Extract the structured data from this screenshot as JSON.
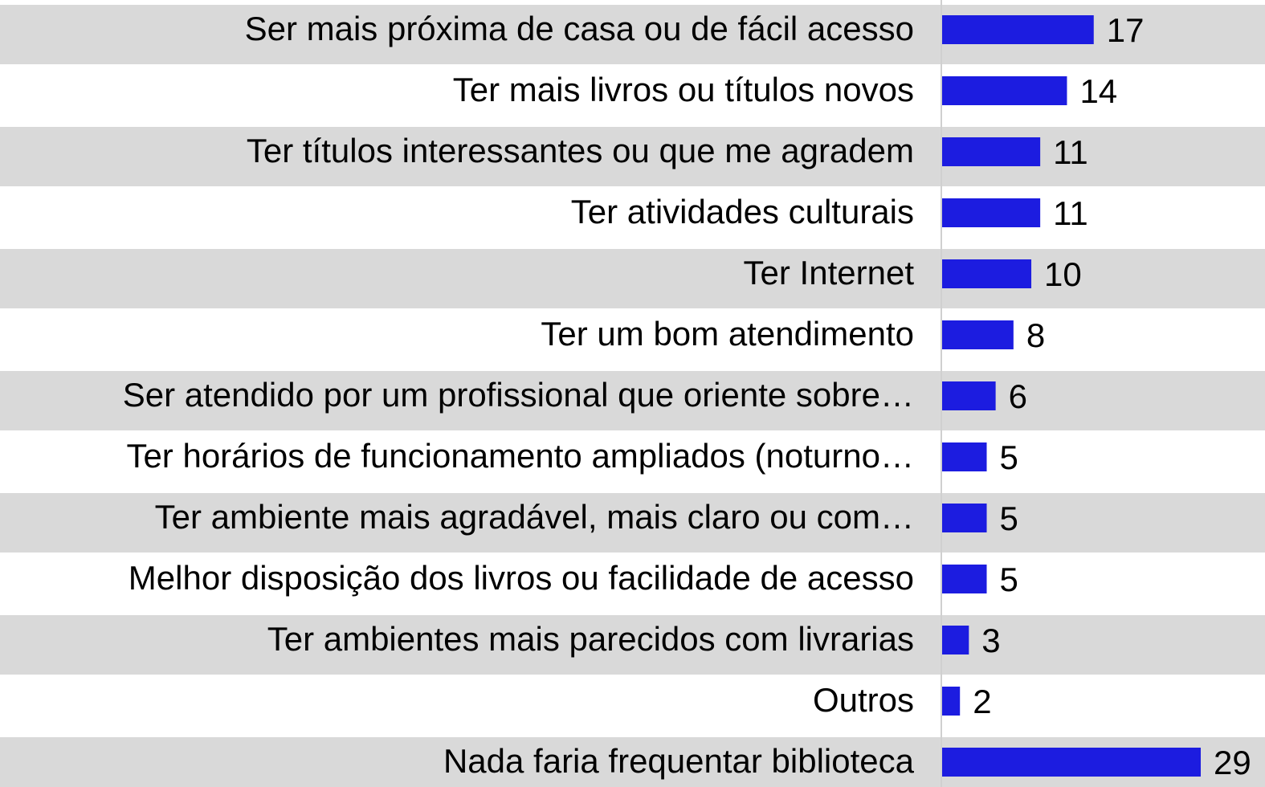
{
  "chart_data": {
    "type": "bar",
    "orientation": "horizontal",
    "color": "#1c1ce0",
    "categories": [
      "Ser mais próxima de casa ou de fácil acesso",
      "Ter mais livros ou títulos novos",
      "Ter títulos interessantes ou que me agradem",
      "Ter atividades culturais",
      "Ter Internet",
      "Ter um bom atendimento",
      "Ser atendido por um profissional que oriente sobre…",
      "Ter horários de funcionamento ampliados (noturno…",
      "Ter ambiente mais agradável, mais claro ou com…",
      "Melhor disposição dos livros ou facilidade de acesso",
      "Ter ambientes mais parecidos com livrarias",
      "Outros",
      "Nada faria frequentar biblioteca"
    ],
    "values": [
      17,
      14,
      11,
      11,
      10,
      8,
      6,
      5,
      5,
      5,
      3,
      2,
      29
    ]
  }
}
